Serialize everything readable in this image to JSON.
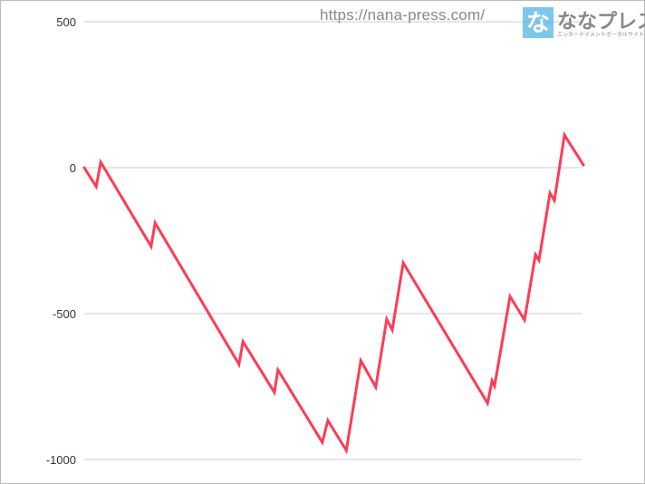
{
  "chart_data": {
    "type": "line",
    "title": "",
    "xlabel": "",
    "ylabel": "",
    "ylim": [
      -1000,
      500
    ],
    "xlim": [
      0,
      1000
    ],
    "yticks": [
      "500",
      "0",
      "-500",
      "-1000"
    ],
    "ytick_values": [
      500,
      0,
      -500,
      -1000
    ],
    "grid": "horizontal",
    "line_color": "#ff3b55",
    "grid_color": "#cccccc",
    "x": [
      0,
      24,
      33,
      134,
      142,
      310,
      318,
      381,
      388,
      477,
      488,
      525,
      554,
      584,
      606,
      617,
      639,
      808,
      817,
      822,
      853,
      882,
      904,
      911,
      933,
      942,
      962,
      1000
    ],
    "values": [
      0,
      -65,
      19,
      -270,
      -189,
      -674,
      -596,
      -770,
      -693,
      -941,
      -866,
      -969,
      -661,
      -752,
      -519,
      -556,
      -326,
      -807,
      -730,
      -748,
      -441,
      -522,
      -298,
      -317,
      -87,
      -112,
      112,
      9
    ]
  },
  "watermark": {
    "url": "https://nana-press.com/",
    "logo_icon": "な",
    "logo_name": "ななプレス",
    "logo_sub": "エンターテイメントポータルサイト"
  }
}
